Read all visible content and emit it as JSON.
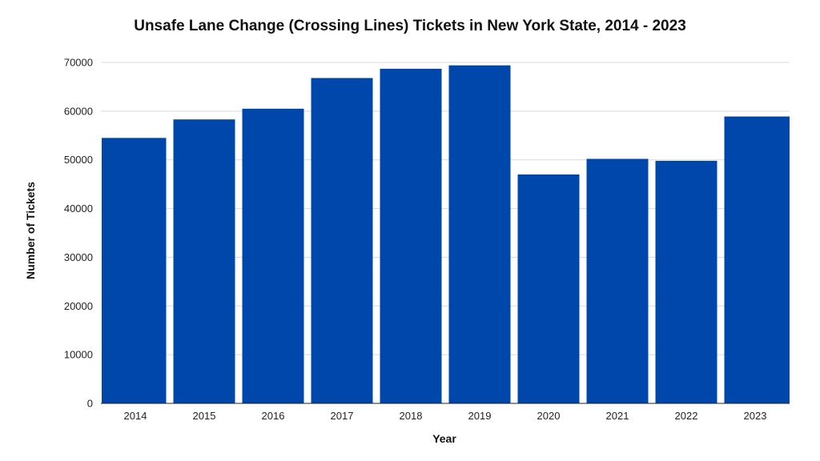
{
  "chart_data": {
    "type": "bar",
    "title": "Unsafe Lane Change (Crossing Lines) Tickets in New York State, 2014 - 2023",
    "xlabel": "Year",
    "ylabel": "Number of Tickets",
    "categories": [
      "2014",
      "2015",
      "2016",
      "2017",
      "2018",
      "2019",
      "2020",
      "2021",
      "2022",
      "2023"
    ],
    "values": [
      54500,
      58300,
      60500,
      66800,
      68700,
      69400,
      47000,
      50200,
      49800,
      58900
    ],
    "ylim": [
      0,
      70000
    ],
    "yticks": [
      "0",
      "10000",
      "20000",
      "30000",
      "40000",
      "50000",
      "60000",
      "70000"
    ],
    "grid": true,
    "legend": "none",
    "colors": {
      "bar": "#0047AB",
      "grid": "#d9d9d9",
      "axis": "#222222"
    }
  }
}
